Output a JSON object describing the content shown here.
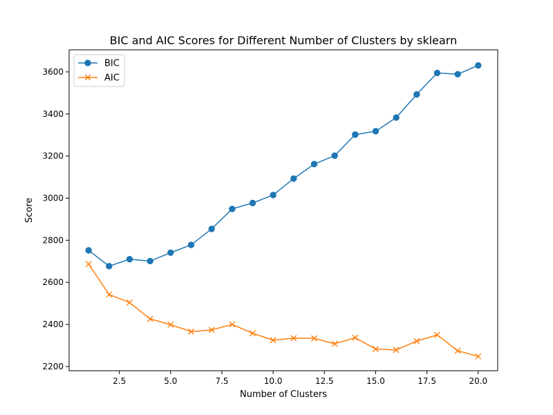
{
  "chart_data": {
    "type": "line",
    "title": "BIC and AIC Scores for Different Number of Clusters by sklearn",
    "xlabel": "Number of Clusters",
    "ylabel": "Score",
    "x": [
      1,
      2,
      3,
      4,
      5,
      6,
      7,
      8,
      9,
      10,
      11,
      12,
      13,
      14,
      15,
      16,
      17,
      18,
      19,
      20
    ],
    "xlim": [
      0.05,
      20.95
    ],
    "ylim": [
      2180,
      3705
    ],
    "xticks": [
      2.5,
      5.0,
      7.5,
      10.0,
      12.5,
      15.0,
      17.5,
      20.0
    ],
    "xtick_labels": [
      "2.5",
      "5.0",
      "7.5",
      "10.0",
      "12.5",
      "15.0",
      "17.5",
      "20.0"
    ],
    "yticks": [
      2200,
      2400,
      2600,
      2800,
      3000,
      3200,
      3400,
      3600
    ],
    "ytick_labels": [
      "2200",
      "2400",
      "2600",
      "2800",
      "3000",
      "3200",
      "3400",
      "3600"
    ],
    "grid": false,
    "legend_position": "upper-left",
    "series": [
      {
        "name": "BIC",
        "color": "#1f77b4",
        "marker": "circle",
        "values": [
          2752,
          2677,
          2710,
          2701,
          2741,
          2778,
          2854,
          2949,
          2977,
          3015,
          3093,
          3162,
          3202,
          3302,
          3318,
          3383,
          3493,
          3595,
          3589,
          3631
        ]
      },
      {
        "name": "AIC",
        "color": "#ff7f0e",
        "marker": "x",
        "values": [
          2687,
          2542,
          2504,
          2426,
          2399,
          2366,
          2374,
          2400,
          2358,
          2325,
          2335,
          2334,
          2308,
          2337,
          2283,
          2279,
          2321,
          2350,
          2275,
          2248
        ]
      }
    ]
  }
}
